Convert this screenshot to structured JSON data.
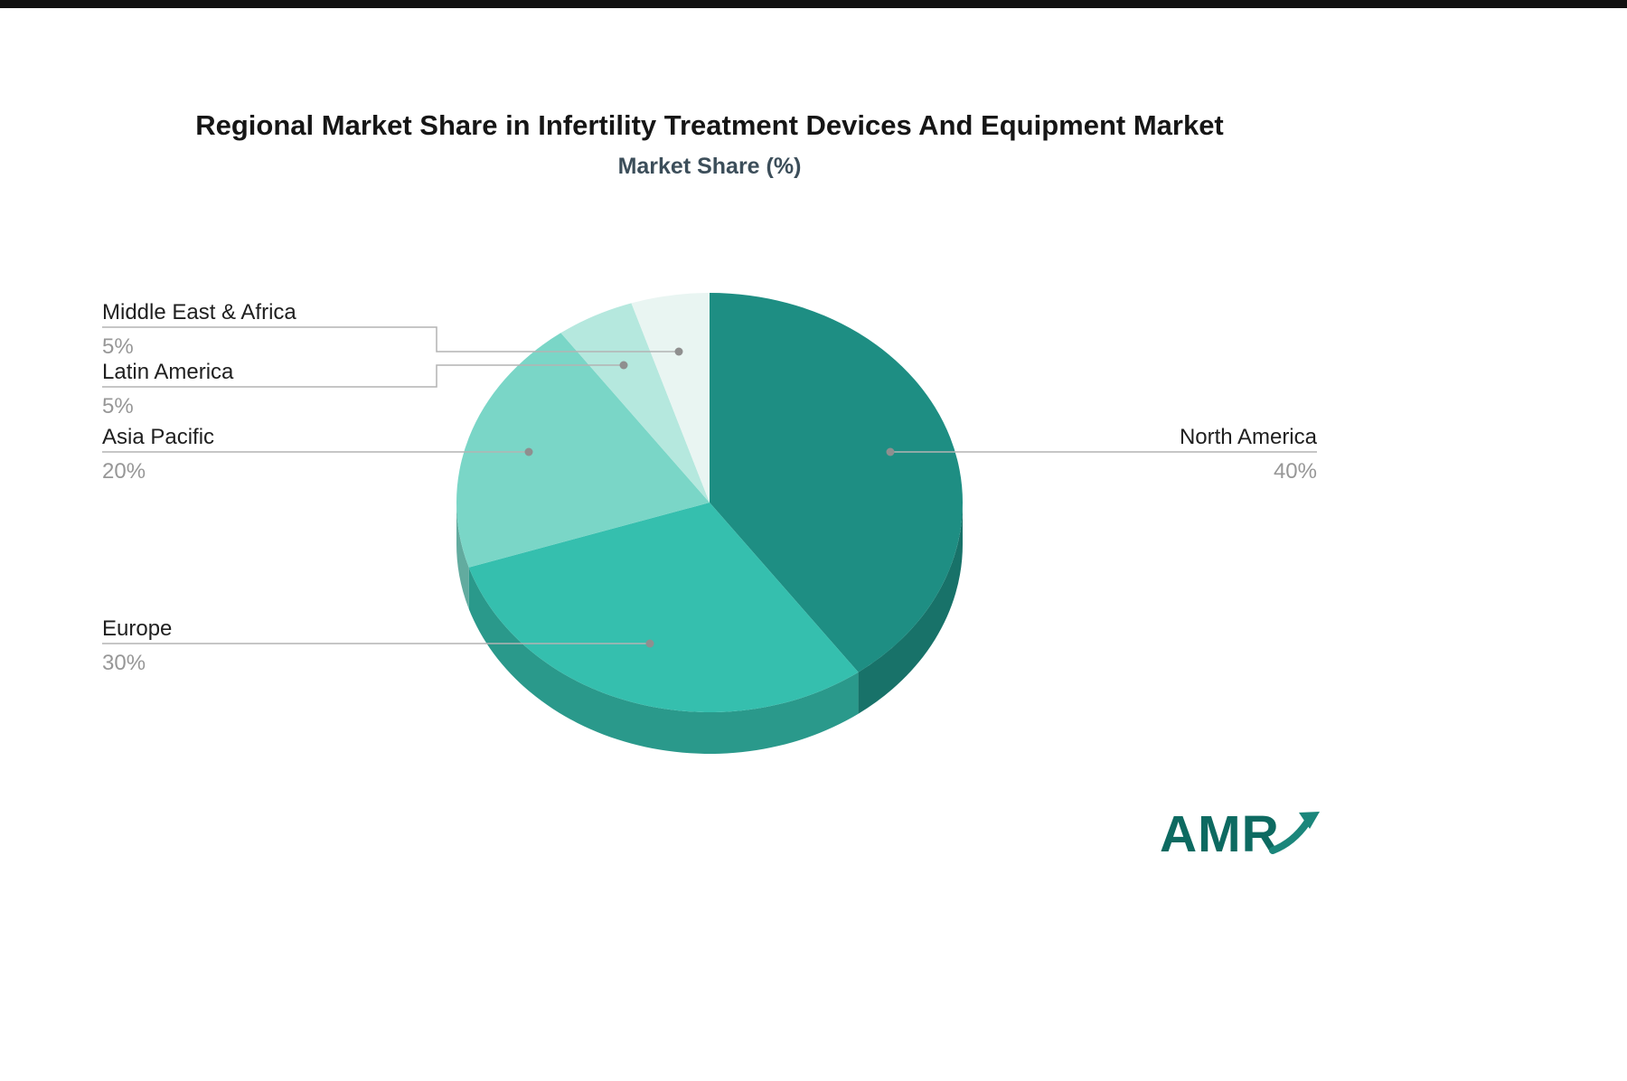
{
  "title": "Regional Market Share in Infertility Treatment Devices And Equipment Market",
  "subtitle": "Market Share (%)",
  "logo": {
    "text": "AMR",
    "color": "#0d6a61",
    "arrow_color": "#1b867b"
  },
  "chart_data": {
    "type": "pie",
    "title": "Regional Market Share in Infertility Treatment Devices And Equipment Market",
    "subtitle": "Market Share (%)",
    "unit": "percent",
    "start_angle_deg": 0,
    "direction": "clockwise",
    "effect_3d": true,
    "legend_position": "callout-labels",
    "slices": [
      {
        "label": "North America",
        "value": 40,
        "display": "40%",
        "color": "#1e8e83"
      },
      {
        "label": "Europe",
        "value": 30,
        "display": "30%",
        "color": "#35bfae"
      },
      {
        "label": "Asia Pacific",
        "value": 20,
        "display": "20%",
        "color": "#7ad6c7"
      },
      {
        "label": "Latin America",
        "value": 5,
        "display": "5%",
        "color": "#b5e8de"
      },
      {
        "label": "Middle East & Africa",
        "value": 5,
        "display": "5%",
        "color": "#e9f5f2"
      }
    ]
  }
}
